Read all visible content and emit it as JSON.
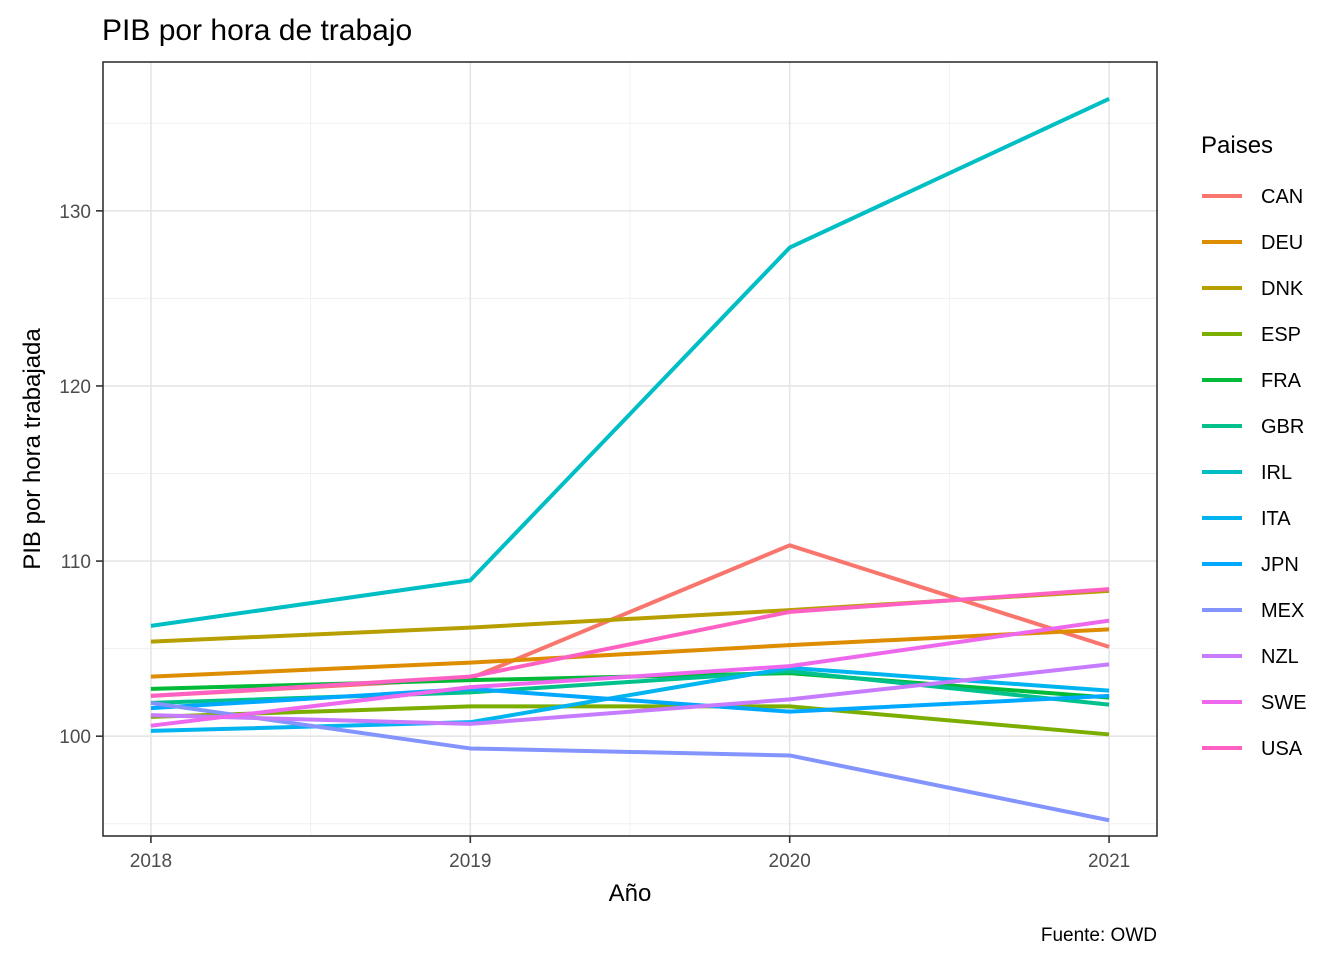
{
  "chart_data": {
    "type": "line",
    "title": "PIB por hora de trabajo",
    "xlabel": "Año",
    "ylabel": "PIB por hora trabajada",
    "caption": "Fuente: OWD",
    "legend_title": "Paises",
    "legend_position": "right",
    "grid": true,
    "x": [
      2018,
      2019,
      2020,
      2021
    ],
    "x_ticks": [
      "2018",
      "2019",
      "2020",
      "2021"
    ],
    "xlim": [
      2017.85,
      2021.15
    ],
    "y_ticks": [
      100,
      110,
      120,
      130
    ],
    "y_tick_labels": [
      "100",
      "110",
      "120",
      "130"
    ],
    "ylim": [
      94.3,
      138.5
    ],
    "series": [
      {
        "name": "CAN",
        "color": "#F8766D",
        "values": [
          102.3,
          103.3,
          110.9,
          105.1
        ]
      },
      {
        "name": "DEU",
        "color": "#DE8C00",
        "values": [
          103.4,
          104.2,
          105.2,
          106.1
        ]
      },
      {
        "name": "DNK",
        "color": "#B79F00",
        "values": [
          105.4,
          106.2,
          107.2,
          108.3
        ]
      },
      {
        "name": "ESP",
        "color": "#7CAE00",
        "values": [
          101.1,
          101.7,
          101.7,
          100.1
        ]
      },
      {
        "name": "FRA",
        "color": "#00BA38",
        "values": [
          102.7,
          103.2,
          103.6,
          102.2
        ]
      },
      {
        "name": "GBR",
        "color": "#00C08B",
        "values": [
          101.9,
          102.5,
          103.7,
          101.8
        ]
      },
      {
        "name": "IRL",
        "color": "#00BFC4",
        "values": [
          106.3,
          108.9,
          127.9,
          136.4
        ]
      },
      {
        "name": "ITA",
        "color": "#00B4F0",
        "values": [
          100.3,
          100.8,
          103.9,
          102.6
        ]
      },
      {
        "name": "JPN",
        "color": "#00A9FF",
        "values": [
          101.6,
          102.7,
          101.4,
          102.3
        ]
      },
      {
        "name": "MEX",
        "color": "#8494FF",
        "values": [
          101.9,
          99.3,
          98.9,
          95.2
        ]
      },
      {
        "name": "NZL",
        "color": "#C77CFF",
        "values": [
          101.2,
          100.7,
          102.1,
          104.1
        ]
      },
      {
        "name": "SWE",
        "color": "#ED68ED",
        "values": [
          100.6,
          102.8,
          104.0,
          106.6
        ]
      },
      {
        "name": "USA",
        "color": "#FF61C3",
        "values": [
          102.3,
          103.4,
          107.1,
          108.4
        ]
      }
    ]
  }
}
